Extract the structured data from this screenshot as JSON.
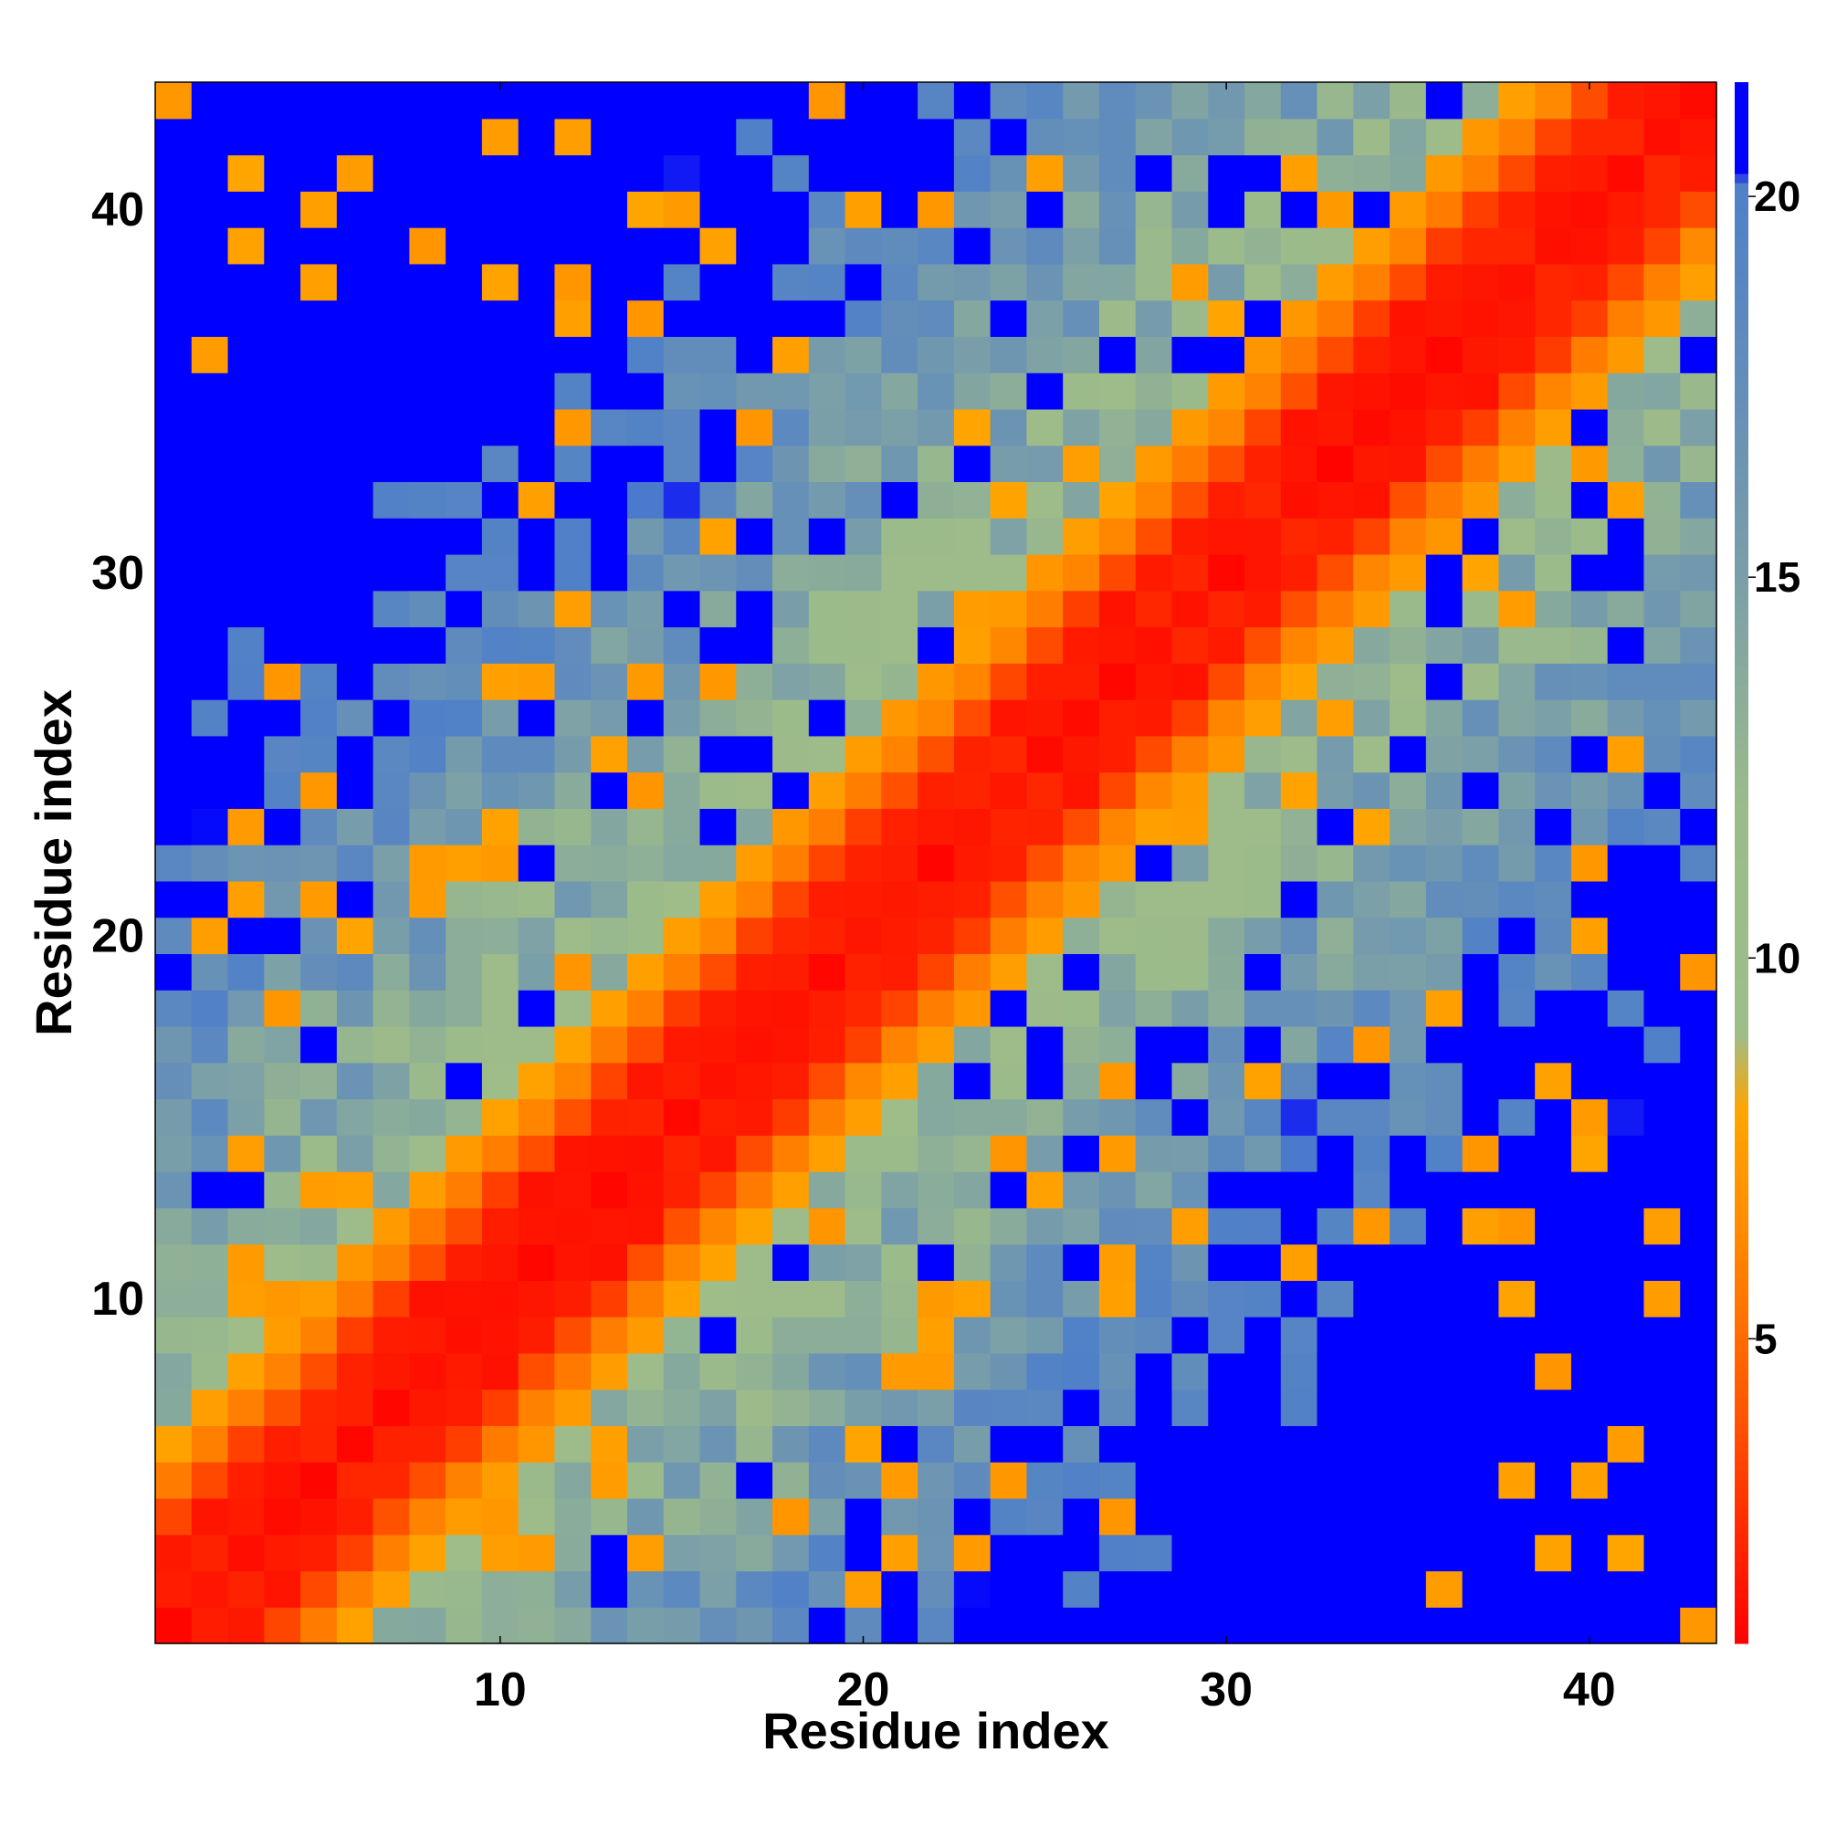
{
  "chart_data": {
    "type": "heatmap",
    "title": "",
    "xlabel": "Residue index",
    "ylabel": "Residue index",
    "x_ticks": [
      10,
      20,
      30,
      40
    ],
    "y_ticks": [
      10,
      20,
      30,
      40
    ],
    "x_range": [
      1,
      43
    ],
    "y_range": [
      1,
      43
    ],
    "colorbar": {
      "range": [
        1,
        21.5
      ],
      "ticks": [
        5,
        10,
        15,
        20
      ],
      "stops": [
        {
          "value": 1,
          "color": "#ff0000"
        },
        {
          "value": 4,
          "color": "#ff5500"
        },
        {
          "value": 6.5,
          "color": "#ff8c00"
        },
        {
          "value": 8,
          "color": "#ffa500"
        },
        {
          "value": 9,
          "color": "#9fbd89"
        },
        {
          "value": 12,
          "color": "#9cbb8a"
        },
        {
          "value": 15,
          "color": "#7a9fa8"
        },
        {
          "value": 18.5,
          "color": "#5b88c0"
        },
        {
          "value": 20.2,
          "color": "#5080c8"
        },
        {
          "value": 20.3,
          "color": "#0000ff"
        },
        {
          "value": 21.5,
          "color": "#0000ff"
        }
      ]
    },
    "description_of_values": "Symmetric residue-residue distance map: value grows with |i-j|, clamped at ~21.",
    "matrix_rule": {
      "diagonal_band_width": 3,
      "near_values": [
        1.5,
        2,
        2,
        3.5,
        6,
        7.5
      ],
      "far_cap": 21
    }
  }
}
